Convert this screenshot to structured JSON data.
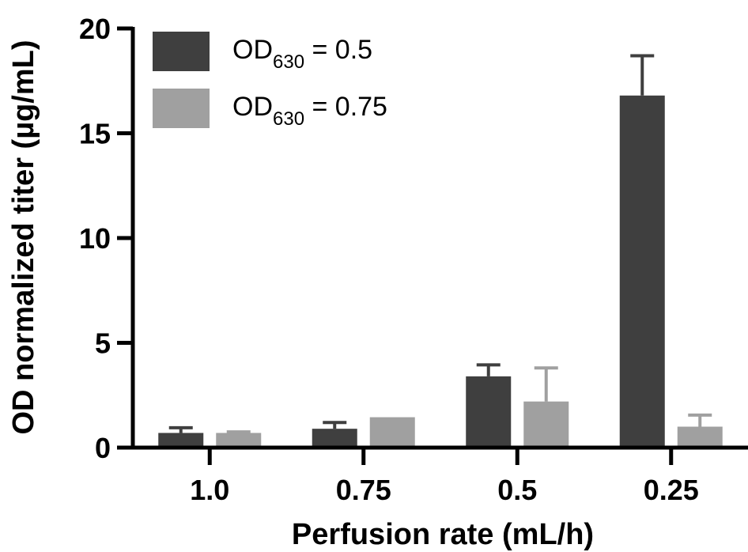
{
  "chart_data": {
    "type": "bar",
    "xlabel": "Perfusion rate (mL/h)",
    "ylabel": "OD normalized titer (µg/mL)",
    "categories": [
      "1.0",
      "0.75",
      "0.5",
      "0.25"
    ],
    "ylim": [
      0,
      20
    ],
    "yticks": [
      "0",
      "5",
      "10",
      "15",
      "20"
    ],
    "grid": false,
    "legend_position": "top-left",
    "series": [
      {
        "legend": {
          "main": "OD",
          "sub": "630",
          "suffix": " = 0.5"
        },
        "color": "#3f3f3f",
        "values": [
          0.7,
          0.9,
          3.4,
          16.8
        ],
        "errors": [
          0.25,
          0.3,
          0.55,
          1.9
        ]
      },
      {
        "legend": {
          "main": "OD",
          "sub": "630",
          "suffix": " = 0.75"
        },
        "color": "#a0a0a0",
        "values": [
          0.7,
          1.45,
          2.2,
          1.0
        ],
        "errors": [
          0.05,
          0.0,
          1.6,
          0.55
        ]
      }
    ]
  }
}
